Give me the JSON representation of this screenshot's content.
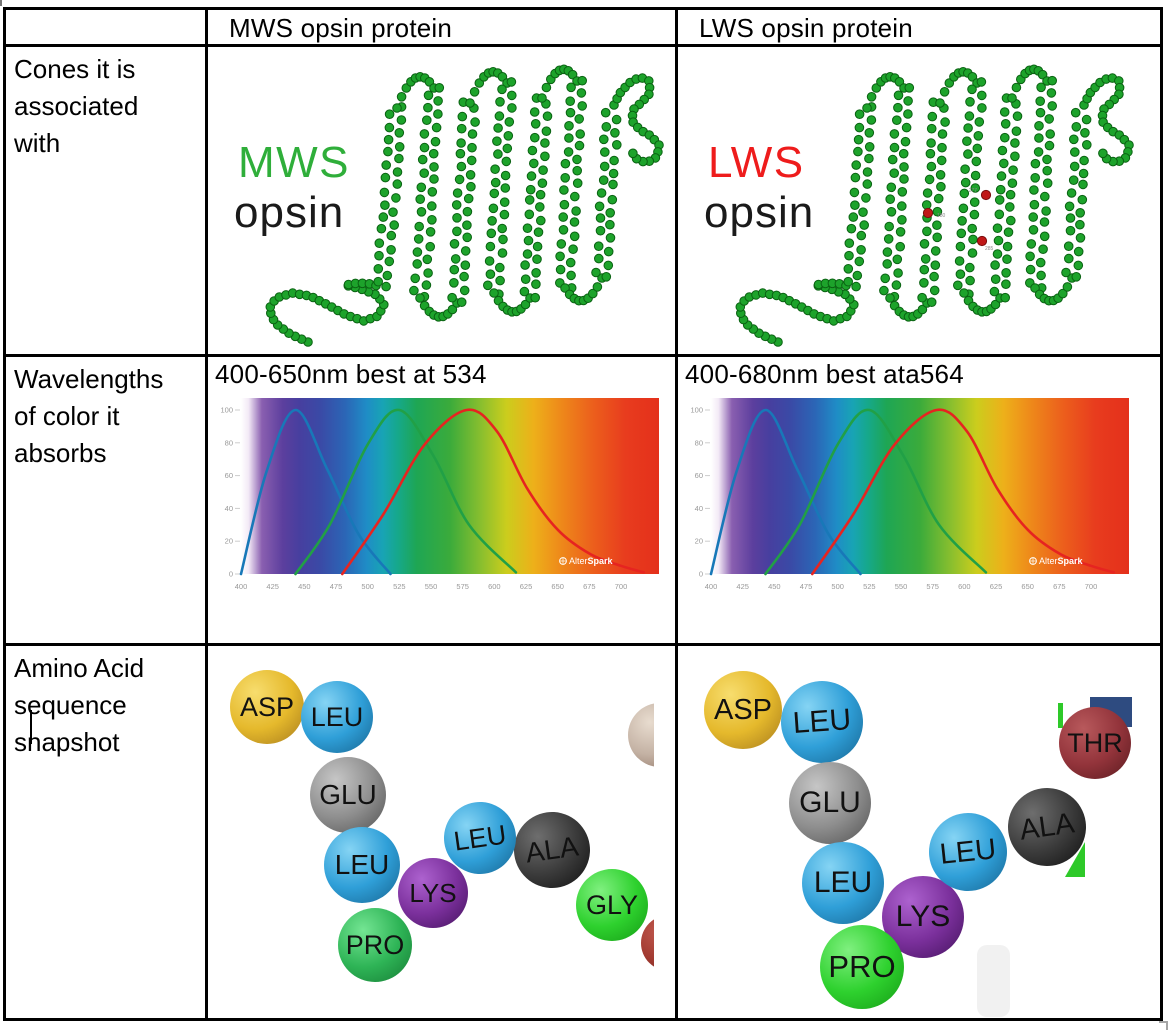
{
  "document": {
    "table": {
      "header": [
        "",
        "MWS opsin protein",
        "LWS opsin protein"
      ],
      "row_labels": [
        "Cones it is associated with",
        "Wavelengths of color it absorbs",
        "Amino Acid sequence snapshot"
      ]
    },
    "mws": {
      "diagram_title": "MWS",
      "diagram_subtitle": "opsin",
      "title_color": "#2fae3a",
      "wavelength_text": "400-650nm best at 534"
    },
    "lws": {
      "diagram_title": "LWS",
      "diagram_subtitle": "opsin",
      "title_color": "#ee1c1c",
      "wavelength_text": "400-680nm best ata564",
      "mutation_site_labels": [
        "277",
        "180",
        "285"
      ]
    }
  },
  "chart_data": {
    "type": "line",
    "note": "identical cone absorbance chart shown in both columns over a visible-spectrum gradient background",
    "x_ticks": [
      400,
      425,
      450,
      475,
      500,
      525,
      550,
      575,
      600,
      625,
      650,
      675,
      700
    ],
    "y_ticks": [
      0,
      20,
      40,
      60,
      80,
      100
    ],
    "xlim": [
      400,
      723
    ],
    "ylim": [
      0,
      100
    ],
    "grid": false,
    "legend": false,
    "watermark": {
      "prefix": "Alter",
      "bold": "Spark",
      "icon": "sparkle"
    },
    "series": [
      {
        "name": "short-wave curve",
        "color": "#1878b8",
        "points": [
          [
            400,
            0
          ],
          [
            420,
            62
          ],
          [
            443,
            100
          ],
          [
            468,
            64
          ],
          [
            493,
            24
          ],
          [
            518,
            0
          ]
        ]
      },
      {
        "name": "middle-wave curve",
        "color": "#21a046",
        "points": [
          [
            443,
            0
          ],
          [
            470,
            30
          ],
          [
            500,
            79
          ],
          [
            525,
            100
          ],
          [
            552,
            72
          ],
          [
            580,
            30
          ],
          [
            617,
            1
          ]
        ]
      },
      {
        "name": "long-wave curve",
        "color": "#e62420",
        "points": [
          [
            480,
            0
          ],
          [
            512,
            36
          ],
          [
            545,
            79
          ],
          [
            578,
            100
          ],
          [
            602,
            87
          ],
          [
            626,
            52
          ],
          [
            650,
            27
          ],
          [
            676,
            12
          ],
          [
            700,
            5
          ],
          [
            718,
            1
          ]
        ]
      }
    ]
  },
  "amino_palette": {
    "gold": {
      "light": "#f7dd6e",
      "base": "#e5b92c",
      "dark": "#a5791c"
    },
    "blue": {
      "light": "#85d4f4",
      "base": "#2f9fd8",
      "dark": "#16638f"
    },
    "gray": {
      "light": "#c6c6c6",
      "base": "#8e8e8e",
      "dark": "#505050"
    },
    "charcoal": {
      "light": "#6e6e6e",
      "base": "#3b3b3b",
      "dark": "#0f0f0f"
    },
    "green": {
      "light": "#74e593",
      "base": "#2eb456",
      "dark": "#157a33"
    },
    "green_bright": {
      "light": "#80f080",
      "base": "#2ed12e",
      "dark": "#149a14"
    },
    "purple": {
      "light": "#ad62cf",
      "base": "#7b309c",
      "dark": "#43125c"
    },
    "maroon": {
      "light": "#b8595c",
      "base": "#93343b",
      "dark": "#591a1e"
    },
    "tan": {
      "light": "#e8dccf",
      "base": "#c4b2a4",
      "dark": "#8a6f60"
    },
    "dark_red": {
      "light": "#c0594e",
      "base": "#a23a31",
      "dark": "#6e231d"
    }
  },
  "amino_balls_mws": [
    {
      "label": "ASP",
      "color": "gold"
    },
    {
      "label": "LEU",
      "color": "blue"
    },
    {
      "label": "GLU",
      "color": "gray"
    },
    {
      "label": "LEU",
      "color": "blue"
    },
    {
      "label": "ALA",
      "color": "charcoal"
    },
    {
      "label": "GLY",
      "color": "green_bright"
    },
    {
      "label": "LYS",
      "color": "purple"
    },
    {
      "label": "LEU",
      "color": "blue"
    },
    {
      "label": "PRO",
      "color": "green"
    },
    {
      "label": "",
      "color": "tan"
    },
    {
      "label": "",
      "color": "dark_red"
    }
  ],
  "amino_balls_lws": [
    {
      "label": "ASP",
      "color": "gold"
    },
    {
      "label": "LEU",
      "color": "blue"
    },
    {
      "label": "GLU",
      "color": "gray"
    },
    {
      "label": "LEU",
      "color": "blue"
    },
    {
      "label": "ALA",
      "color": "charcoal"
    },
    {
      "label": "LYS",
      "color": "purple"
    },
    {
      "label": "LEU",
      "color": "blue"
    },
    {
      "label": "PRO",
      "color": "green_bright"
    },
    {
      "label": "THR",
      "color": "maroon"
    }
  ]
}
